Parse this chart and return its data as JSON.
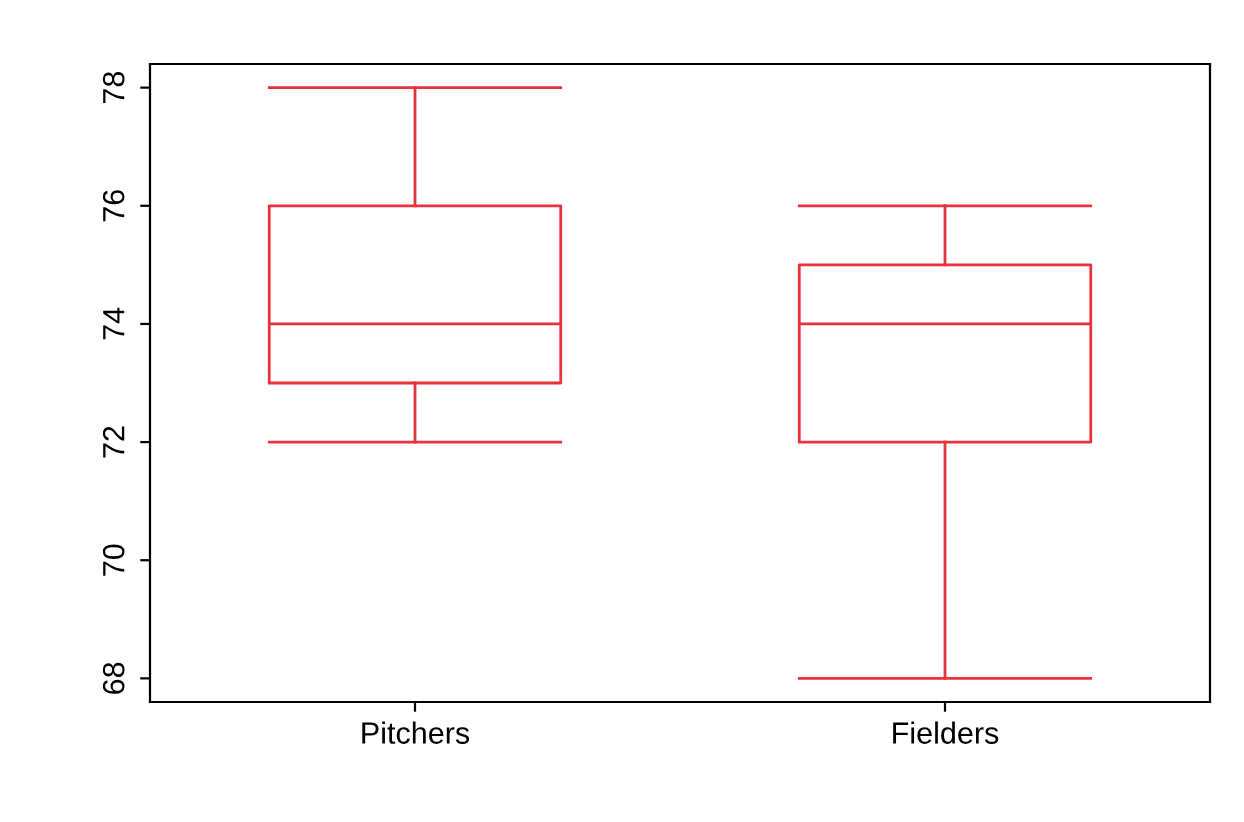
{
  "chart_data": {
    "type": "box",
    "categories": [
      "Pitchers",
      "Fielders"
    ],
    "color": "#e8323c",
    "boxes": [
      {
        "low": 72,
        "q1": 73,
        "median": 74,
        "q3": 76,
        "high": 78
      },
      {
        "low": 68,
        "q1": 72,
        "median": 74,
        "q3": 75,
        "high": 76
      }
    ],
    "ylim": [
      67.6,
      78.4
    ],
    "yticks": [
      68,
      70,
      72,
      74,
      76,
      78
    ],
    "grid": false,
    "legend": false
  }
}
